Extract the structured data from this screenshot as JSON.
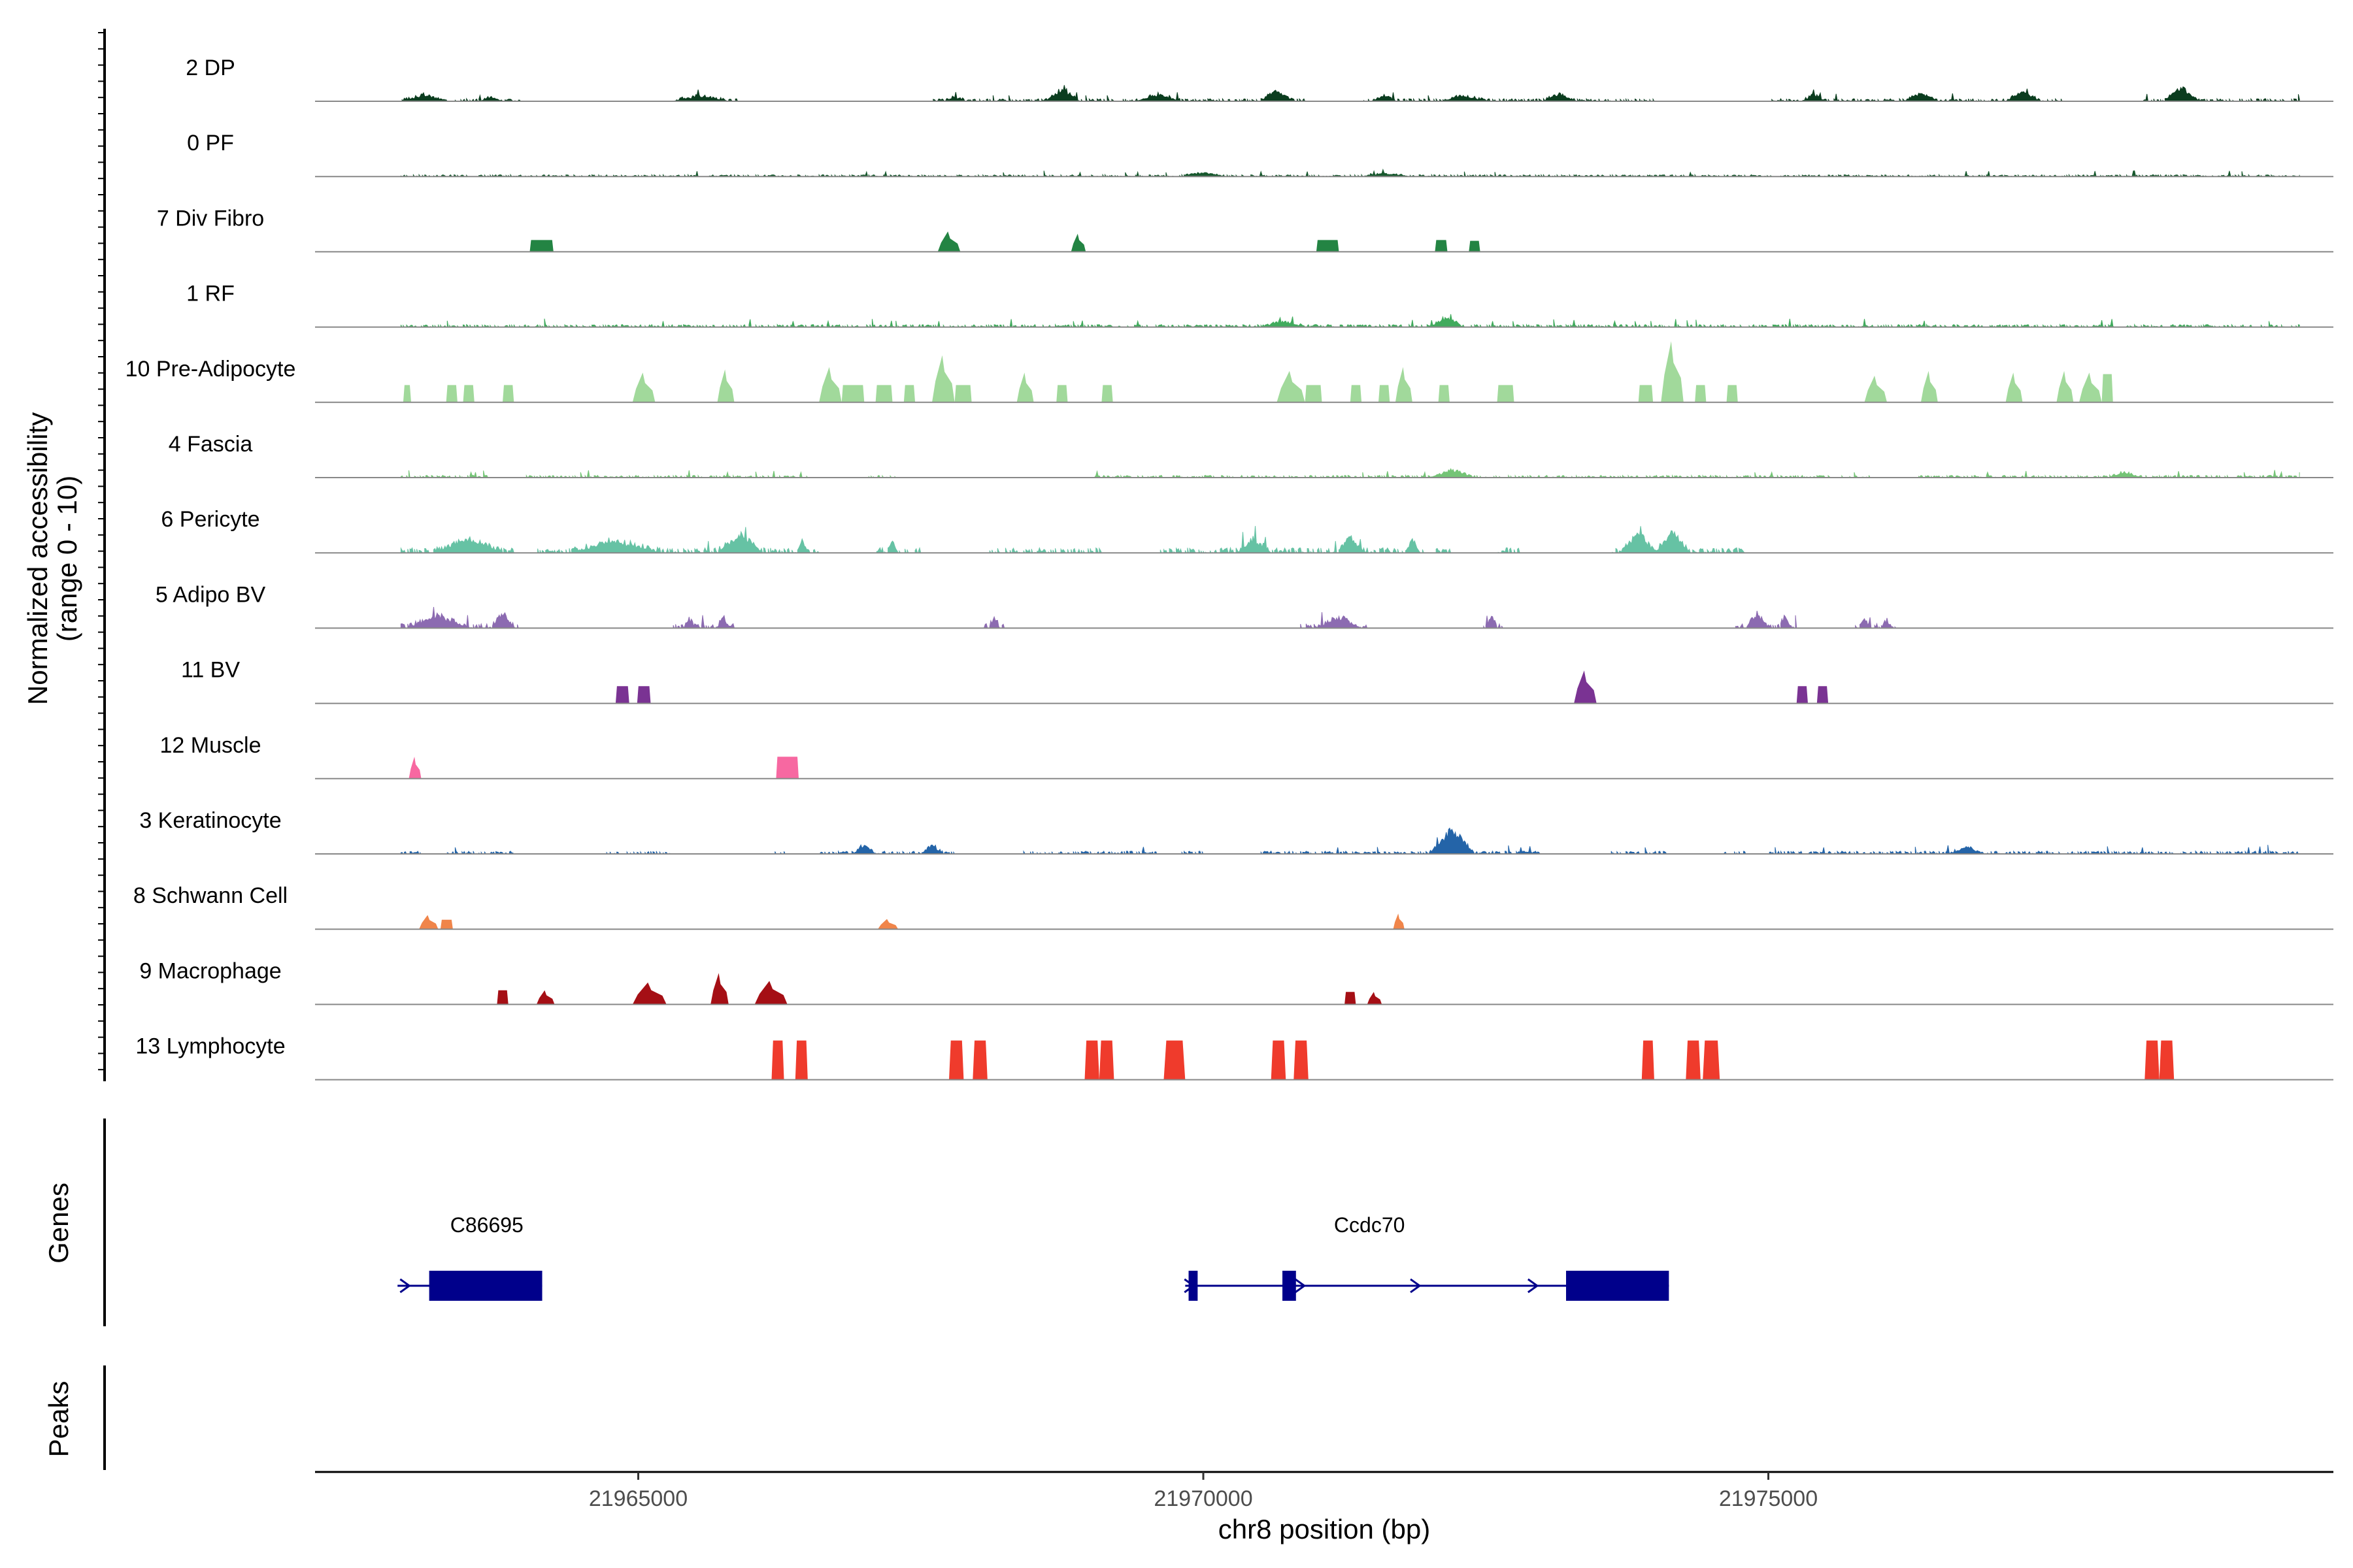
{
  "chart_data": {
    "type": "coverage",
    "y_axis_title": [
      "Normalized accessibility",
      "(range 0 - 10)"
    ],
    "xlabel": "chr8 position (bp)",
    "xlim": [
      21962140,
      21980000
    ],
    "x_ticks": [
      21965000,
      21970000,
      21975000
    ],
    "x_tick_labels": [
      "21965000",
      "21970000",
      "21975000"
    ],
    "ylim": [
      0,
      10
    ],
    "tracks": [
      {
        "name": "2 DP",
        "color": "#0b3d1f",
        "mode": "noise",
        "height": 0.5,
        "seed": 3,
        "peaks": [
          [
            21962900,
            21963300,
            0.8
          ],
          [
            21963600,
            21963800,
            0.6
          ],
          [
            21965300,
            21965800,
            0.7
          ],
          [
            21967700,
            21967900,
            0.5
          ],
          [
            21968600,
            21968900,
            1.6
          ],
          [
            21969400,
            21969800,
            0.9
          ],
          [
            21970500,
            21970800,
            1.5
          ],
          [
            21971500,
            21971700,
            0.8
          ],
          [
            21972100,
            21972500,
            0.7
          ],
          [
            21973000,
            21973300,
            1.0
          ],
          [
            21975300,
            21975500,
            0.9
          ],
          [
            21976200,
            21976500,
            1.1
          ],
          [
            21977100,
            21977400,
            1.4
          ],
          [
            21978500,
            21978800,
            2.0
          ]
        ],
        "gaps": [
          [
            21964000,
            21965300
          ],
          [
            21965900,
            21967600
          ],
          [
            21970900,
            21971400
          ],
          [
            21974000,
            21975000
          ],
          [
            21977600,
            21978300
          ]
        ]
      },
      {
        "name": "0 PF",
        "color": "#18592e",
        "mode": "noise",
        "height": 0.35,
        "seed": 7,
        "peaks": [
          [
            21969800,
            21970200,
            0.5
          ],
          [
            21971400,
            21971800,
            0.4
          ]
        ],
        "gaps": []
      },
      {
        "name": "7 Div Fibro",
        "color": "#238443",
        "mode": "blocks",
        "peaks": [
          [
            21964040,
            21964250,
            1.5,
            "box"
          ],
          [
            21967650,
            21967850,
            2.6,
            "tri"
          ],
          [
            21968830,
            21968960,
            2.3,
            "tri"
          ],
          [
            21971000,
            21971200,
            1.5,
            "box"
          ],
          [
            21972050,
            21972160,
            1.5,
            "box"
          ],
          [
            21972350,
            21972450,
            1.4,
            "box"
          ]
        ]
      },
      {
        "name": "1 RF",
        "color": "#41ab5d",
        "mode": "noise",
        "height": 0.5,
        "seed": 11,
        "peaks": [
          [
            21972000,
            21972300,
            1.3
          ],
          [
            21970500,
            21970900,
            0.7
          ]
        ],
        "gaps": []
      },
      {
        "name": "10 Pre-Adipocyte",
        "color": "#a1d99b",
        "mode": "blocks",
        "peaks": [
          [
            21962920,
            21962990,
            2.2,
            "box"
          ],
          [
            21963300,
            21963400,
            2.2,
            "box"
          ],
          [
            21963450,
            21963550,
            2.2,
            "box"
          ],
          [
            21963800,
            21963900,
            2.2,
            "box"
          ],
          [
            21964950,
            21965150,
            3.8,
            "tri"
          ],
          [
            21965700,
            21965850,
            4.2,
            "tri"
          ],
          [
            21966600,
            21966800,
            4.5,
            "tri"
          ],
          [
            21966800,
            21967000,
            2.2,
            "box"
          ],
          [
            21967100,
            21967250,
            2.2,
            "box"
          ],
          [
            21967350,
            21967450,
            2.2,
            "box"
          ],
          [
            21967600,
            21967800,
            6.0,
            "tri"
          ],
          [
            21967800,
            21967950,
            2.2,
            "box"
          ],
          [
            21968350,
            21968500,
            3.8,
            "tri"
          ],
          [
            21968700,
            21968800,
            2.2,
            "box"
          ],
          [
            21969100,
            21969200,
            2.2,
            "box"
          ],
          [
            21970650,
            21970900,
            4.0,
            "tri"
          ],
          [
            21970900,
            21971050,
            2.2,
            "box"
          ],
          [
            21971300,
            21971400,
            2.2,
            "box"
          ],
          [
            21971550,
            21971650,
            2.2,
            "box"
          ],
          [
            21971700,
            21971850,
            4.5,
            "tri"
          ],
          [
            21972080,
            21972180,
            2.2,
            "box"
          ],
          [
            21972600,
            21972750,
            2.2,
            "box"
          ],
          [
            21973850,
            21973980,
            2.2,
            "box"
          ],
          [
            21974050,
            21974250,
            7.8,
            "tri"
          ],
          [
            21974350,
            21974450,
            2.2,
            "box"
          ],
          [
            21974630,
            21974730,
            2.2,
            "box"
          ],
          [
            21975850,
            21976050,
            3.4,
            "tri"
          ],
          [
            21976350,
            21976500,
            4.0,
            "tri"
          ],
          [
            21977100,
            21977250,
            3.8,
            "tri"
          ],
          [
            21977550,
            21977700,
            4.0,
            "tri"
          ],
          [
            21977750,
            21977950,
            3.8,
            "tri"
          ],
          [
            21977950,
            21978050,
            3.6,
            "box"
          ]
        ]
      },
      {
        "name": "4 Fascia",
        "color": "#74c476",
        "mode": "noise",
        "height": 0.45,
        "seed": 19,
        "peaks": [
          [
            21972000,
            21972400,
            1.0
          ],
          [
            21978000,
            21978300,
            0.7
          ]
        ],
        "gaps": [
          [
            21963700,
            21964000
          ],
          [
            21966500,
            21967000
          ],
          [
            21967300,
            21969000
          ],
          [
            21970000,
            21970000
          ],
          [
            21975900,
            21976300
          ]
        ]
      },
      {
        "name": "6 Pericyte",
        "color": "#66c2a4",
        "mode": "noise",
        "height": 1.0,
        "seed": 23,
        "peaks": [
          [
            21963200,
            21963800,
            2.0
          ],
          [
            21964400,
            21965200,
            1.6
          ],
          [
            21965700,
            21966100,
            2.5
          ],
          [
            21966400,
            21966500,
            1.5
          ],
          [
            21967200,
            21967300,
            1.3
          ],
          [
            21970300,
            21970600,
            1.8
          ],
          [
            21971200,
            21971400,
            2.2
          ],
          [
            21971800,
            21971900,
            2.0
          ],
          [
            21973700,
            21974000,
            2.6
          ],
          [
            21974000,
            21974300,
            2.8
          ]
        ],
        "gaps": [
          [
            21963900,
            21964100
          ],
          [
            21966600,
            21967100
          ],
          [
            21967500,
            21968100
          ],
          [
            21969100,
            21969600
          ],
          [
            21971950,
            21972050
          ],
          [
            21972200,
            21972600
          ],
          [
            21972800,
            21973600
          ],
          [
            21974800,
            21980000
          ]
        ]
      },
      {
        "name": "5 Adipo BV",
        "color": "#8c6bb1",
        "mode": "noise",
        "height": 0.9,
        "seed": 29,
        "peaks": [
          [
            21962950,
            21963500,
            1.6
          ],
          [
            21963700,
            21963900,
            2.0
          ],
          [
            21965400,
            21965500,
            1.2
          ],
          [
            21965700,
            21965800,
            1.6
          ],
          [
            21968100,
            21968200,
            1.3
          ],
          [
            21971000,
            21971400,
            1.4
          ],
          [
            21972500,
            21972600,
            1.6
          ],
          [
            21974800,
            21975000,
            2.0
          ],
          [
            21975100,
            21975200,
            1.6
          ],
          [
            21975800,
            21975900,
            1.2
          ],
          [
            21976000,
            21976100,
            1.0
          ]
        ],
        "gaps": [
          [
            21963950,
            21965300
          ],
          [
            21965850,
            21968050
          ],
          [
            21968250,
            21970850
          ],
          [
            21971450,
            21972450
          ],
          [
            21972650,
            21974700
          ],
          [
            21975250,
            21975750
          ],
          [
            21976150,
            21980000
          ]
        ]
      },
      {
        "name": "11 BV",
        "color": "#7a3393",
        "mode": "blocks",
        "peaks": [
          [
            21964800,
            21964920,
            2.2,
            "box"
          ],
          [
            21964990,
            21965110,
            2.2,
            "box"
          ],
          [
            21973280,
            21973480,
            4.2,
            "tri"
          ],
          [
            21975250,
            21975350,
            2.2,
            "box"
          ],
          [
            21975430,
            21975530,
            2.2,
            "box"
          ]
        ]
      },
      {
        "name": "12 Muscle",
        "color": "#f768a1",
        "mode": "blocks",
        "peaks": [
          [
            21962970,
            21963080,
            2.8,
            "tri"
          ],
          [
            21966220,
            21966420,
            2.8,
            "box"
          ]
        ]
      },
      {
        "name": "3 Keratinocyte",
        "color": "#2464a8",
        "mode": "noise",
        "height": 0.55,
        "seed": 37,
        "peaks": [
          [
            21966900,
            21967100,
            1.2
          ],
          [
            21967500,
            21967700,
            1.2
          ],
          [
            21972000,
            21972400,
            3.4
          ],
          [
            21976600,
            21976900,
            0.9
          ]
        ],
        "gaps": [
          [
            21963100,
            21963300
          ],
          [
            21963900,
            21964700
          ],
          [
            21965300,
            21966200
          ],
          [
            21966300,
            21966600
          ],
          [
            21967800,
            21968400
          ],
          [
            21969600,
            21969800
          ],
          [
            21970000,
            21970500
          ],
          [
            21973000,
            21973600
          ],
          [
            21974100,
            21974600
          ],
          [
            21974800,
            21975000
          ]
        ]
      },
      {
        "name": "8 Schwann Cell",
        "color": "#f0854a",
        "mode": "blocks",
        "peaks": [
          [
            21963060,
            21963230,
            1.8,
            "tri"
          ],
          [
            21963250,
            21963360,
            1.2,
            "box"
          ],
          [
            21967120,
            21967300,
            1.3,
            "tri"
          ],
          [
            21971680,
            21971780,
            2.0,
            "tri"
          ]
        ]
      },
      {
        "name": "9 Macrophage",
        "color": "#a50f15",
        "mode": "blocks",
        "peaks": [
          [
            21963750,
            21963850,
            1.8,
            "box"
          ],
          [
            21964100,
            21964260,
            1.8,
            "tri"
          ],
          [
            21964950,
            21965250,
            2.8,
            "tri"
          ],
          [
            21965640,
            21965800,
            4.0,
            "tri"
          ],
          [
            21966030,
            21966320,
            3.0,
            "tri"
          ],
          [
            21971250,
            21971350,
            1.6,
            "box"
          ],
          [
            21971450,
            21971580,
            1.6,
            "tri"
          ]
        ]
      },
      {
        "name": "13 Lymphocyte",
        "color": "#ef3b2c",
        "mode": "blocks",
        "peaks": [
          [
            21966180,
            21966290,
            5.0,
            "trap"
          ],
          [
            21966390,
            21966500,
            5.0,
            "trap"
          ],
          [
            21967750,
            21967880,
            5.0,
            "trap"
          ],
          [
            21967960,
            21968090,
            5.0,
            "trap"
          ],
          [
            21968950,
            21969080,
            5.0,
            "trap"
          ],
          [
            21969080,
            21969210,
            5.0,
            "trap"
          ],
          [
            21969650,
            21969840,
            5.0,
            "trap"
          ],
          [
            21970600,
            21970730,
            5.0,
            "trap"
          ],
          [
            21970800,
            21970930,
            5.0,
            "trap"
          ],
          [
            21973880,
            21973990,
            5.0,
            "trap"
          ],
          [
            21974270,
            21974400,
            5.0,
            "trap"
          ],
          [
            21974420,
            21974570,
            5.0,
            "trap"
          ],
          [
            21978330,
            21978460,
            5.0,
            "trap"
          ],
          [
            21978460,
            21978590,
            5.0,
            "trap"
          ]
        ]
      }
    ],
    "genes_track_title": "Genes",
    "peaks_track_title": "Peaks",
    "genes": [
      {
        "name": "C86695",
        "strand": "+",
        "start": 21962870,
        "end": 21964150,
        "exons": [
          [
            21963150,
            21964150
          ]
        ],
        "thin_exons": [],
        "arrows": [
          21962940
        ],
        "label_x": 21963660
      },
      {
        "name": "Ccdc70",
        "strand": "+",
        "start": 21969840,
        "end": 21974120,
        "exons": [
          [
            21970700,
            21970820
          ],
          [
            21973210,
            21974120
          ]
        ],
        "thin_exons": [
          [
            21969870,
            21969950
          ]
        ],
        "arrows": [
          21969880,
          21970860,
          21971880,
          21972920
        ],
        "label_x": 21971470
      }
    ],
    "colors": {
      "gene": "#00008b",
      "baseline": "#888888",
      "axis": "#000000"
    }
  }
}
